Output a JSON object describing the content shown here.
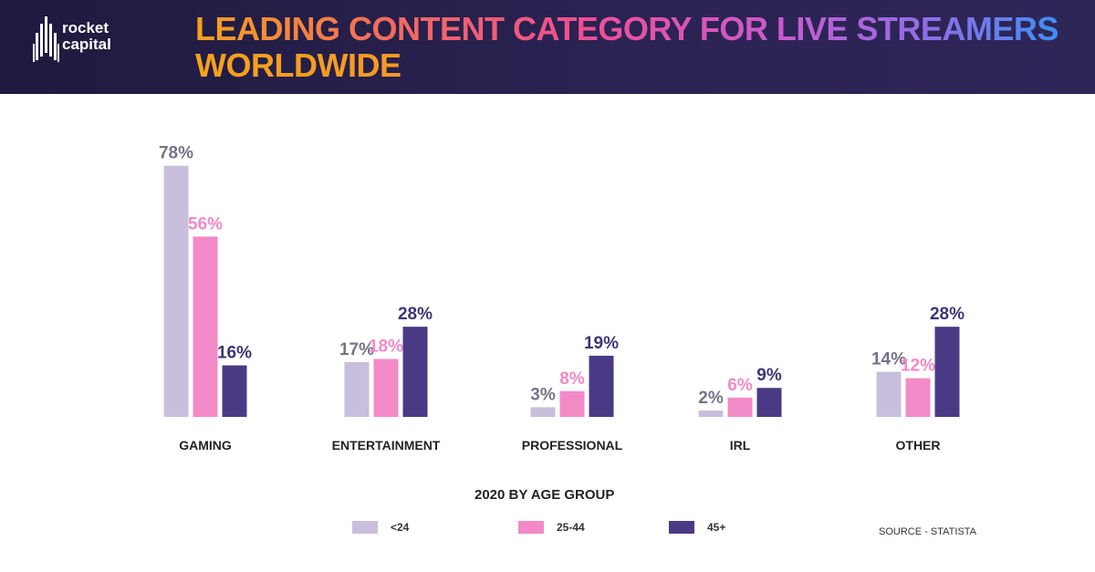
{
  "header": {
    "logo_text_line1": "rocket",
    "logo_text_line2": "capital",
    "title_line1": "LEADING CONTENT CATEGORY FOR LIVE STREAMERS",
    "title_line2": "WORLDWIDE"
  },
  "chart_data": {
    "type": "bar",
    "categories": [
      "GAMING",
      "ENTERTAINMENT",
      "PROFESSIONAL",
      "IRL",
      "OTHER"
    ],
    "series": [
      {
        "name": "<24",
        "color": "#c8bfdc",
        "label_color": "#757389",
        "values": [
          78,
          17,
          3,
          2,
          14
        ]
      },
      {
        "name": "25-44",
        "color": "#f28ac7",
        "label_color": "#f28ac7",
        "values": [
          56,
          18,
          8,
          6,
          12
        ]
      },
      {
        "name": "45+",
        "color": "#4a3a86",
        "label_color": "#3f3478",
        "values": [
          16,
          28,
          19,
          9,
          28
        ]
      }
    ],
    "value_suffix": "%",
    "legend_title": "2020 BY AGE GROUP",
    "ylim": [
      0,
      80
    ],
    "grid": false,
    "legend_position": "bottom"
  },
  "legend": {
    "title": "2020 BY AGE GROUP",
    "items": [
      "<24",
      "25-44",
      "45+"
    ]
  },
  "source": "SOURCE - STATISTA"
}
